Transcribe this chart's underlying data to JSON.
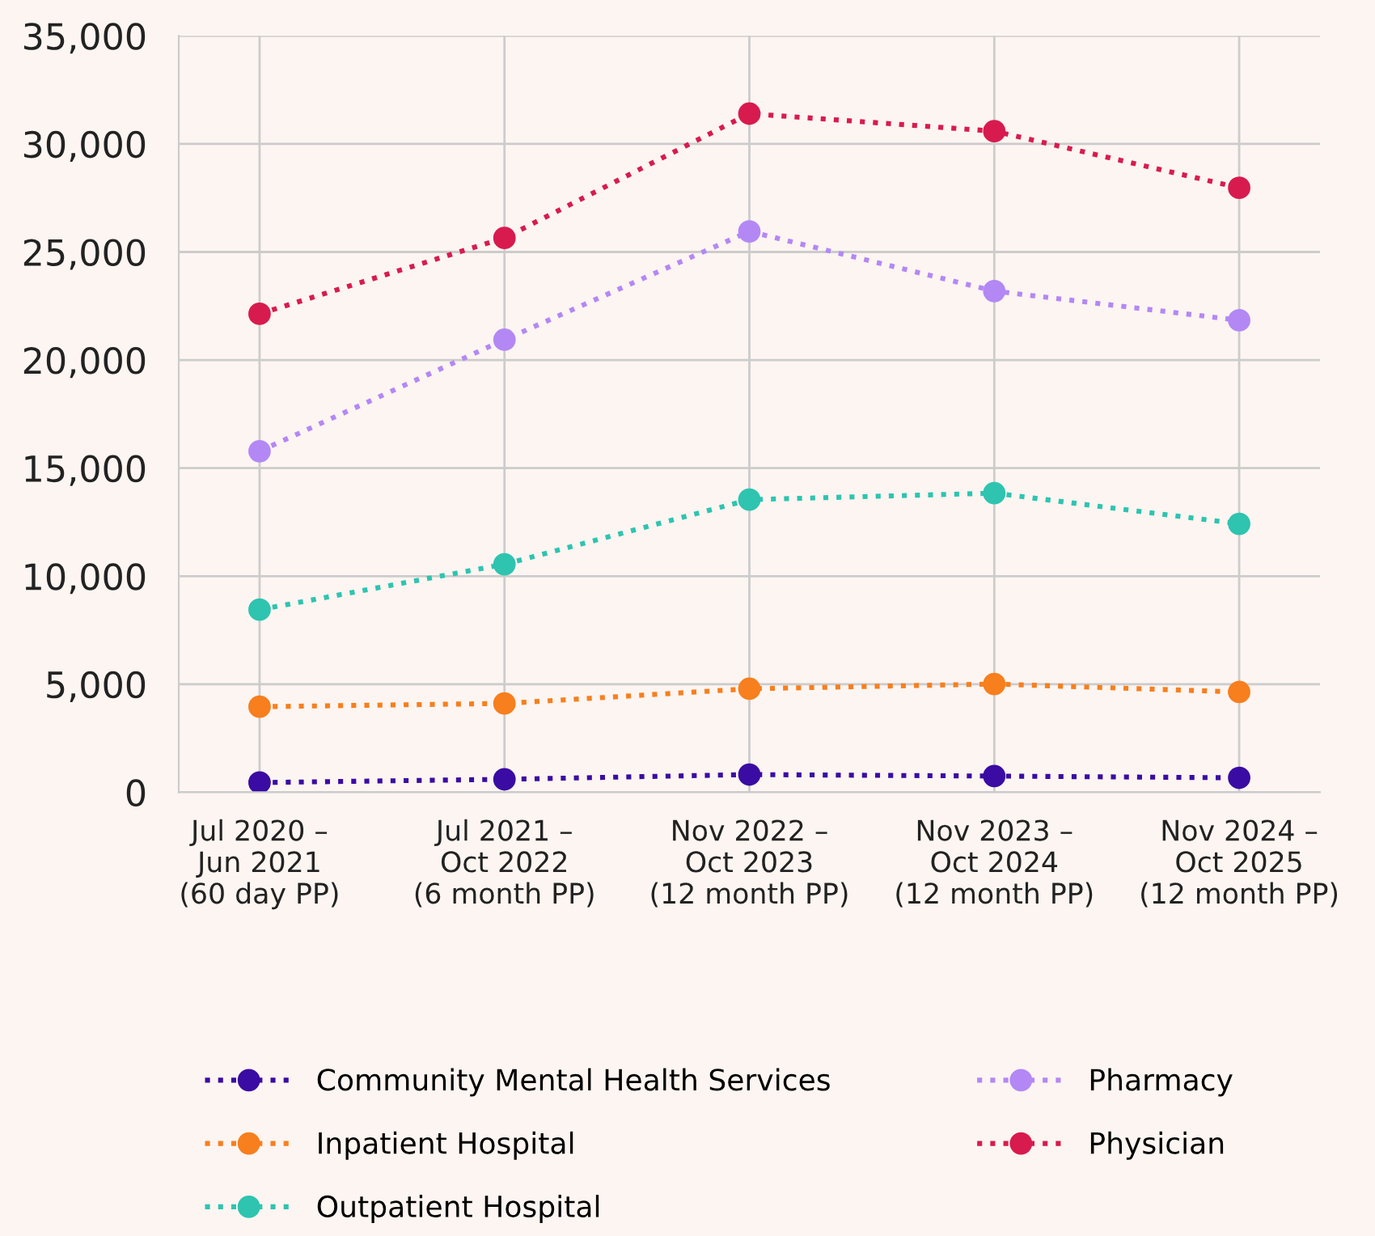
{
  "chart_data": {
    "type": "line",
    "categories": [
      "Jul 2020 –\nJun 2021\n(60 day PP)",
      "Jul 2021 –\nOct 2022\n(6 month PP)",
      "Nov 2022 –\nOct 2023\n(12 month PP)",
      "Nov 2023 –\nOct 2024\n(12 month PP)",
      "Nov 2024 –\nOct 2025\n(12 month PP)"
    ],
    "series": [
      {
        "name": "Community Mental Health Services",
        "color": "#3a0ca3",
        "values": [
          450,
          600,
          820,
          750,
          670
        ]
      },
      {
        "name": "Inpatient Hospital",
        "color": "#f77f1e",
        "values": [
          3960,
          4110,
          4790,
          5010,
          4640
        ]
      },
      {
        "name": "Outpatient Hospital",
        "color": "#2ec4b0",
        "values": [
          8450,
          10550,
          13540,
          13840,
          12420
        ]
      },
      {
        "name": "Pharmacy",
        "color": "#b388f5",
        "values": [
          15780,
          20940,
          25950,
          23190,
          21840
        ]
      },
      {
        "name": "Physician",
        "color": "#d81b4f",
        "values": [
          22140,
          25650,
          31400,
          30590,
          27970
        ]
      }
    ],
    "ylim": [
      0,
      35000
    ],
    "yticks": [
      {
        "value": 0,
        "label": "0"
      },
      {
        "value": 5000,
        "label": "5,000"
      },
      {
        "value": 10000,
        "label": "10,000"
      },
      {
        "value": 15000,
        "label": "15,000"
      },
      {
        "value": 20000,
        "label": "20,000"
      },
      {
        "value": 25000,
        "label": "25,000"
      },
      {
        "value": 30000,
        "label": "30,000"
      },
      {
        "value": 35000,
        "label": "35,000"
      }
    ],
    "grid": true,
    "legend": "bottom",
    "marker": "circle",
    "line_style": "dotted"
  }
}
